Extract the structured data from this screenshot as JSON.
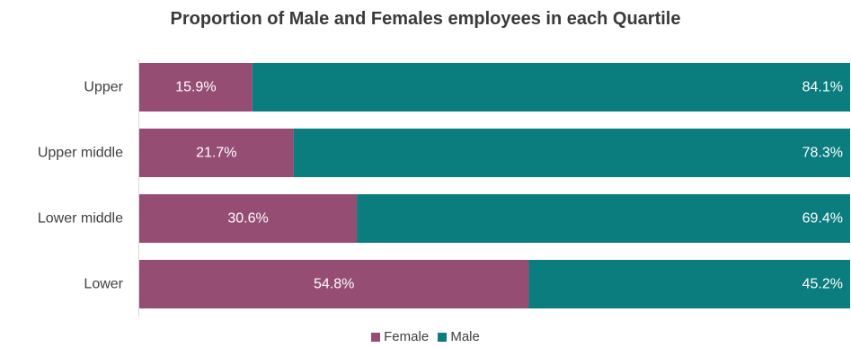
{
  "chart_data": {
    "type": "bar",
    "orientation": "horizontal",
    "stacked": true,
    "title": "Proportion of Male and Females employees in each Quartile",
    "categories": [
      "Upper",
      "Upper middle",
      "Lower middle",
      "Lower"
    ],
    "series": [
      {
        "name": "Female",
        "color": "#964d73",
        "values": [
          15.9,
          21.7,
          30.6,
          54.8
        ],
        "labels": [
          "15.9%",
          "21.7%",
          "30.6%",
          "54.8%"
        ]
      },
      {
        "name": "Male",
        "color": "#0b7d7e",
        "values": [
          84.1,
          78.3,
          69.4,
          45.2
        ],
        "labels": [
          "84.1%",
          "78.3%",
          "69.4%",
          "45.2%"
        ]
      }
    ],
    "xlim": [
      0,
      100
    ],
    "grid": false,
    "legend": "bottom"
  }
}
